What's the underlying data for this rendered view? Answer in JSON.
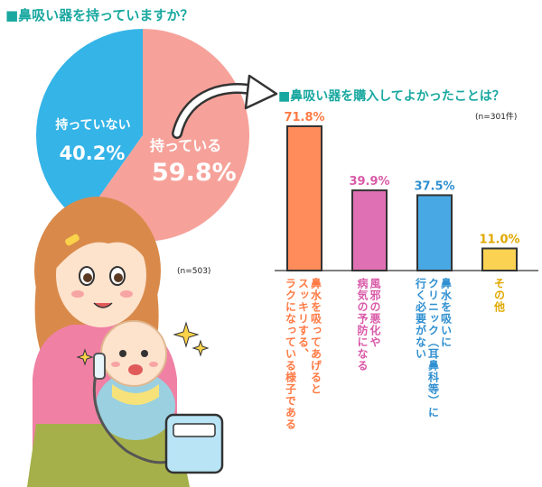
{
  "header": {
    "question1": "■鼻吸い器を持っていますか？",
    "question1_n": "(n=503)",
    "question2": "■鼻吸い器を購入してよかったことは？",
    "question2_n": "(n=301件)"
  },
  "colors": {
    "teal_heading": "#19a8a0",
    "pie_blue": "#35b4e8",
    "pie_pink": "#f6a29a",
    "bar_orange": "#ff8c5a",
    "bar_pink": "#e070b4",
    "bar_blue": "#48a8e4",
    "bar_yellow": "#fcd252"
  },
  "chart_data": [
    {
      "type": "pie",
      "slices": [
        {
          "label": "持っていない",
          "value": 40.2,
          "value_label": "40.2%",
          "color": "#35b4e8"
        },
        {
          "label": "持っている",
          "value": 59.8,
          "value_label": "59.8%",
          "color": "#f6a29a"
        }
      ]
    },
    {
      "type": "bar",
      "categories": [
        "鼻水を吸ってあげるとスッキリする、ラクになっている様子である",
        "風邪の悪化や病気の予防になる",
        "鼻水を吸いにクリニック（耳鼻科等）に行く必要がない",
        "その他"
      ],
      "values": [
        71.8,
        39.9,
        37.5,
        11.0
      ],
      "value_labels": [
        "71.8%",
        "39.9%",
        "37.5%",
        "11.0%"
      ],
      "colors": [
        "#ff8c5a",
        "#e070b4",
        "#48a8e4",
        "#fcd252"
      ],
      "label_colors": [
        "#ff7a44",
        "#d95aa8",
        "#2f8fd0",
        "#e0a800"
      ],
      "category_lines": [
        [
          "鼻水を吸ってあげると",
          "スッキリする、",
          "ラクになっている様子である"
        ],
        [
          "風邪の悪化や",
          "病気の予防になる"
        ],
        [
          "鼻水を吸いに",
          "クリニック（耳鼻科等）に",
          "行く必要がない"
        ],
        [
          "その他"
        ]
      ]
    }
  ]
}
